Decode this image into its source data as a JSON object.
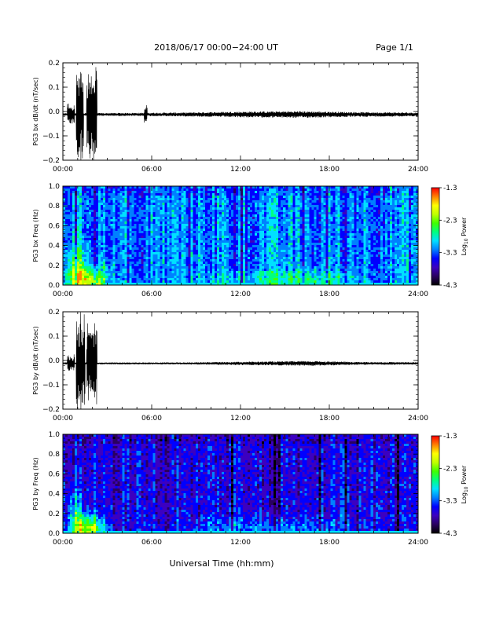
{
  "header": {
    "title": "2018/06/17  00:00−24:00 UT",
    "page_label": "Page 1/1"
  },
  "footer": {
    "xlabel": "Universal Time (hh:mm)"
  },
  "time_ticks": [
    "00:00",
    "06:00",
    "12:00",
    "18:00",
    "24:00"
  ],
  "colorbar": {
    "label_main": "Log",
    "label_sub": "10",
    "label_rest": " Power",
    "ticks": [
      "-1.3",
      "-2.3",
      "-3.3",
      "-4.3"
    ],
    "colors": [
      "#000000",
      "#2a0060",
      "#3c00c0",
      "#0000ff",
      "#0080ff",
      "#00e0ff",
      "#00ff80",
      "#40ff00",
      "#c0ff00",
      "#ffff00",
      "#ff8000",
      "#ff0000"
    ]
  },
  "chart_data": [
    {
      "type": "line",
      "id": "bx_dbdt",
      "ylabel": "PG3 bx dB/dt (nT/sec)",
      "xlim": [
        0,
        24
      ],
      "ylim": [
        -0.2,
        0.2
      ],
      "x_unit": "hours UT",
      "yticks": [
        "0.2",
        "0.1",
        "0.0",
        "−0.1",
        "−0.2"
      ],
      "ytick_values": [
        0.2,
        0.1,
        0.0,
        -0.1,
        -0.2
      ],
      "baseline": -0.012,
      "bursts": [
        {
          "t": [
            0.3,
            0.8
          ],
          "amp": 0.05
        },
        {
          "t": [
            0.9,
            1.4
          ],
          "amp": 0.22
        },
        {
          "t": [
            1.6,
            2.3
          ],
          "amp": 0.22
        },
        {
          "t": [
            5.5,
            5.7
          ],
          "amp": 0.04
        }
      ],
      "noise_envelope": [
        {
          "t": 0.0,
          "amp": 0.005
        },
        {
          "t": 3.0,
          "amp": 0.006
        },
        {
          "t": 8.0,
          "amp": 0.008
        },
        {
          "t": 12.0,
          "amp": 0.012
        },
        {
          "t": 16.0,
          "amp": 0.014
        },
        {
          "t": 20.0,
          "amp": 0.01
        },
        {
          "t": 24.0,
          "amp": 0.008
        }
      ]
    },
    {
      "type": "heatmap",
      "id": "bx_spectrogram",
      "ylabel": "PG3 bx Freq (Hz)",
      "xlim": [
        0,
        24
      ],
      "ylim": [
        0,
        1.0
      ],
      "yticks": [
        "1.0",
        "0.8",
        "0.6",
        "0.4",
        "0.2",
        "0.0"
      ],
      "ytick_values": [
        1.0,
        0.8,
        0.6,
        0.4,
        0.2,
        0.0
      ],
      "zlim": [
        -4.3,
        -1.3
      ],
      "zlabel": "Log10 Power",
      "background_level": 0.42,
      "hotspots": [
        {
          "t": 1.8,
          "f": 0.05,
          "level": 0.9,
          "dt": 1.2,
          "df": 0.12
        },
        {
          "t": 0.9,
          "f": 0.15,
          "level": 0.7,
          "dt": 0.6,
          "df": 0.25
        },
        {
          "t": 13.5,
          "f": 0.05,
          "level": 0.55,
          "dt": 4.0,
          "df": 0.1
        },
        {
          "t": 17.5,
          "f": 0.05,
          "level": 0.55,
          "dt": 3.0,
          "df": 0.1
        }
      ]
    },
    {
      "type": "line",
      "id": "by_dbdt",
      "ylabel": "PG3 by dB/dt (nT/sec)",
      "xlim": [
        0,
        24
      ],
      "ylim": [
        -0.2,
        0.2
      ],
      "x_unit": "hours UT",
      "yticks": [
        "0.2",
        "0.1",
        "0.0",
        "−0.1",
        "−0.2"
      ],
      "ytick_values": [
        0.2,
        0.1,
        0.0,
        -0.1,
        -0.2
      ],
      "baseline": -0.012,
      "bursts": [
        {
          "t": [
            0.3,
            0.8
          ],
          "amp": 0.04
        },
        {
          "t": [
            0.9,
            1.5
          ],
          "amp": 0.22
        },
        {
          "t": [
            1.6,
            2.3
          ],
          "amp": 0.2
        }
      ],
      "noise_envelope": [
        {
          "t": 0.0,
          "amp": 0.004
        },
        {
          "t": 3.0,
          "amp": 0.004
        },
        {
          "t": 8.0,
          "amp": 0.004
        },
        {
          "t": 12.0,
          "amp": 0.007
        },
        {
          "t": 17.0,
          "amp": 0.01
        },
        {
          "t": 20.0,
          "amp": 0.006
        },
        {
          "t": 24.0,
          "amp": 0.005
        }
      ]
    },
    {
      "type": "heatmap",
      "id": "by_spectrogram",
      "ylabel": "PG3 by Freq (Hz)",
      "xlim": [
        0,
        24
      ],
      "ylim": [
        0,
        1.0
      ],
      "yticks": [
        "1.0",
        "0.8",
        "0.6",
        "0.4",
        "0.2",
        "0.0"
      ],
      "ytick_values": [
        1.0,
        0.8,
        0.6,
        0.4,
        0.2,
        0.0
      ],
      "zlim": [
        -4.3,
        -1.3
      ],
      "zlabel": "Log10 Power",
      "background_level": 0.28,
      "hotspots": [
        {
          "t": 1.8,
          "f": 0.05,
          "level": 0.85,
          "dt": 1.0,
          "df": 0.12
        },
        {
          "t": 0.9,
          "f": 0.15,
          "level": 0.6,
          "dt": 0.6,
          "df": 0.25
        },
        {
          "t": 14.0,
          "f": 0.05,
          "level": 0.45,
          "dt": 5.0,
          "df": 0.12
        }
      ]
    }
  ]
}
